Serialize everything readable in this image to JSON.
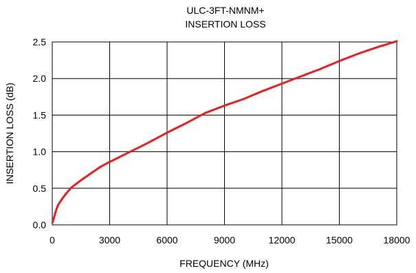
{
  "chart_data": {
    "type": "line",
    "title": "ULC-3FT-NMNM+",
    "subtitle": "INSERTION LOSS",
    "xlabel": "FREQUENCY (MHz)",
    "ylabel": "INSERTION LOSS (dB)",
    "xlim": [
      0,
      18000
    ],
    "ylim": [
      0,
      2.5
    ],
    "xticks": [
      0,
      3000,
      6000,
      9000,
      12000,
      15000,
      18000
    ],
    "xtick_labels": [
      "0",
      "3000",
      "6000",
      "9000",
      "12000",
      "15000",
      "18000"
    ],
    "yticks": [
      0,
      0.5,
      1.0,
      1.5,
      2.0,
      2.5
    ],
    "ytick_labels": [
      "0.0",
      "0.5",
      "1.0",
      "1.5",
      "2.0",
      "2.5"
    ],
    "grid": true,
    "legend": "none",
    "series": [
      {
        "color": "#ee1c1c",
        "x": [
          10,
          100,
          200,
          300,
          500,
          700,
          1000,
          1500,
          2000,
          2500,
          3000,
          4000,
          5000,
          6000,
          7000,
          8000,
          9000,
          10000,
          11000,
          12000,
          13000,
          14000,
          15000,
          16000,
          17000,
          18000
        ],
        "y": [
          0.03,
          0.11,
          0.2,
          0.27,
          0.35,
          0.42,
          0.51,
          0.61,
          0.7,
          0.79,
          0.86,
          0.99,
          1.12,
          1.26,
          1.39,
          1.53,
          1.63,
          1.72,
          1.83,
          1.93,
          2.03,
          2.13,
          2.24,
          2.34,
          2.43,
          2.51
        ]
      }
    ]
  }
}
